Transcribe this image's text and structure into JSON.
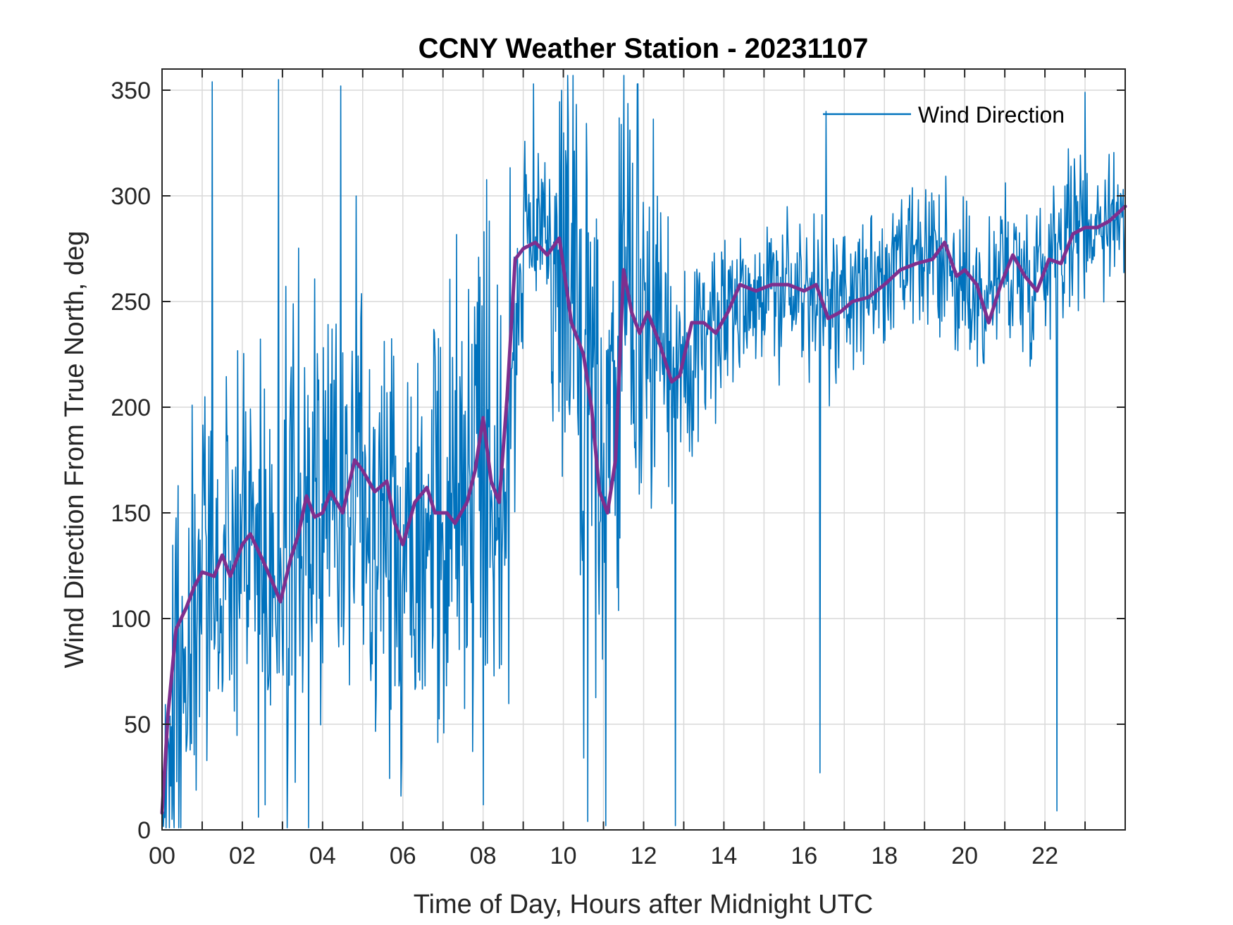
{
  "chart_data": {
    "type": "line",
    "title": "CCNY Weather Station - 20231107",
    "xlabel": "Time of Day, Hours after Midnight UTC",
    "ylabel": "Wind Direction From True North, deg",
    "xlim": [
      0,
      24
    ],
    "ylim": [
      0,
      360
    ],
    "xticks": [
      0,
      2,
      4,
      6,
      8,
      10,
      12,
      14,
      16,
      18,
      20,
      22
    ],
    "xtick_labels": [
      "00",
      "02",
      "04",
      "06",
      "08",
      "10",
      "12",
      "14",
      "16",
      "18",
      "20",
      "22"
    ],
    "xgrid": [
      0,
      1,
      2,
      3,
      4,
      5,
      6,
      7,
      8,
      9,
      10,
      11,
      12,
      13,
      14,
      15,
      16,
      17,
      18,
      19,
      20,
      21,
      22,
      23,
      24
    ],
    "yticks": [
      0,
      50,
      100,
      150,
      200,
      250,
      300,
      350
    ],
    "ytick_labels": [
      "0",
      "50",
      "100",
      "150",
      "200",
      "250",
      "300",
      "350"
    ],
    "grid": true,
    "legend": {
      "position": "top-right",
      "entries": [
        "Wind Direction"
      ]
    },
    "colors": {
      "raw": "#0072BD",
      "smooth": "#7E2F8E",
      "grid": "#d9d9d9",
      "axes": "#262626"
    },
    "series": [
      {
        "name": "Wind Direction",
        "style": "noisy-envelope",
        "x": [
          0,
          0.5,
          1,
          1.5,
          2,
          2.5,
          3,
          3.5,
          4,
          4.5,
          5,
          5.5,
          6,
          6.5,
          7,
          7.5,
          8,
          8.5,
          9,
          9.5,
          10,
          10.5,
          11,
          11.5,
          12,
          12.5,
          13,
          13.5,
          14,
          14.5,
          15,
          15.5,
          16,
          16.5,
          17,
          17.5,
          18,
          18.5,
          19,
          19.5,
          20,
          20.5,
          21,
          21.5,
          22,
          22.5,
          23,
          23.5,
          24
        ],
        "center": [
          15,
          95,
          120,
          125,
          135,
          120,
          110,
          155,
          150,
          160,
          170,
          160,
          135,
          160,
          145,
          160,
          190,
          160,
          275,
          275,
          275,
          225,
          155,
          250,
          240,
          225,
          215,
          240,
          245,
          255,
          255,
          255,
          255,
          245,
          250,
          255,
          260,
          265,
          270,
          265,
          255,
          250,
          270,
          260,
          270,
          285,
          285,
          290,
          295
        ],
        "spread": [
          80,
          80,
          70,
          80,
          80,
          80,
          90,
          90,
          90,
          100,
          100,
          100,
          100,
          100,
          100,
          110,
          130,
          120,
          40,
          30,
          110,
          130,
          140,
          90,
          80,
          60,
          50,
          40,
          35,
          35,
          35,
          35,
          35,
          35,
          30,
          30,
          30,
          30,
          35,
          35,
          35,
          35,
          35,
          35,
          35,
          35,
          30,
          30,
          30
        ],
        "spikes": [
          {
            "x": 0.25,
            "y": 5
          },
          {
            "x": 1.25,
            "y": 354
          },
          {
            "x": 2.4,
            "y": 6
          },
          {
            "x": 2.9,
            "y": 355
          },
          {
            "x": 3.65,
            "y": 1
          },
          {
            "x": 4.45,
            "y": 352
          },
          {
            "x": 5.95,
            "y": 16
          },
          {
            "x": 9.25,
            "y": 353
          },
          {
            "x": 9.95,
            "y": 350
          },
          {
            "x": 10.6,
            "y": 4
          },
          {
            "x": 11.05,
            "y": 2
          },
          {
            "x": 11.85,
            "y": 353
          },
          {
            "x": 12.8,
            "y": 2
          },
          {
            "x": 16.4,
            "y": 27
          },
          {
            "x": 16.55,
            "y": 340
          },
          {
            "x": 22.3,
            "y": 9
          },
          {
            "x": 23.0,
            "y": 349
          }
        ]
      },
      {
        "name": "Smoothed",
        "style": "line",
        "x": [
          0,
          0.15,
          0.35,
          0.6,
          0.8,
          1.0,
          1.3,
          1.5,
          1.7,
          2.0,
          2.2,
          2.5,
          2.8,
          2.95,
          3.2,
          3.4,
          3.6,
          3.8,
          4.0,
          4.2,
          4.5,
          4.8,
          5.0,
          5.3,
          5.6,
          5.8,
          6.0,
          6.3,
          6.6,
          6.8,
          7.1,
          7.3,
          7.6,
          7.8,
          8.0,
          8.2,
          8.4,
          8.6,
          8.8,
          9.0,
          9.3,
          9.6,
          9.9,
          10.2,
          10.5,
          10.7,
          10.9,
          11.1,
          11.3,
          11.5,
          11.7,
          11.9,
          12.1,
          12.4,
          12.7,
          12.9,
          13.2,
          13.5,
          13.8,
          14.1,
          14.4,
          14.8,
          15.2,
          15.6,
          16.0,
          16.3,
          16.6,
          16.9,
          17.2,
          17.6,
          18.0,
          18.4,
          18.8,
          19.2,
          19.5,
          19.8,
          20.0,
          20.3,
          20.6,
          20.9,
          21.2,
          21.5,
          21.8,
          22.1,
          22.4,
          22.7,
          23.0,
          23.3,
          23.6,
          24.0
        ],
        "y": [
          8,
          55,
          95,
          105,
          115,
          122,
          120,
          130,
          120,
          135,
          140,
          128,
          115,
          108,
          128,
          140,
          158,
          148,
          150,
          160,
          150,
          175,
          170,
          160,
          165,
          145,
          135,
          155,
          162,
          150,
          150,
          145,
          155,
          170,
          195,
          165,
          155,
          205,
          270,
          275,
          278,
          272,
          280,
          240,
          225,
          200,
          160,
          150,
          175,
          265,
          245,
          235,
          245,
          230,
          212,
          215,
          240,
          240,
          235,
          245,
          258,
          255,
          258,
          258,
          255,
          258,
          242,
          245,
          250,
          252,
          258,
          265,
          268,
          270,
          278,
          262,
          265,
          258,
          240,
          258,
          272,
          262,
          255,
          270,
          268,
          282,
          285,
          285,
          288,
          295
        ]
      }
    ]
  }
}
